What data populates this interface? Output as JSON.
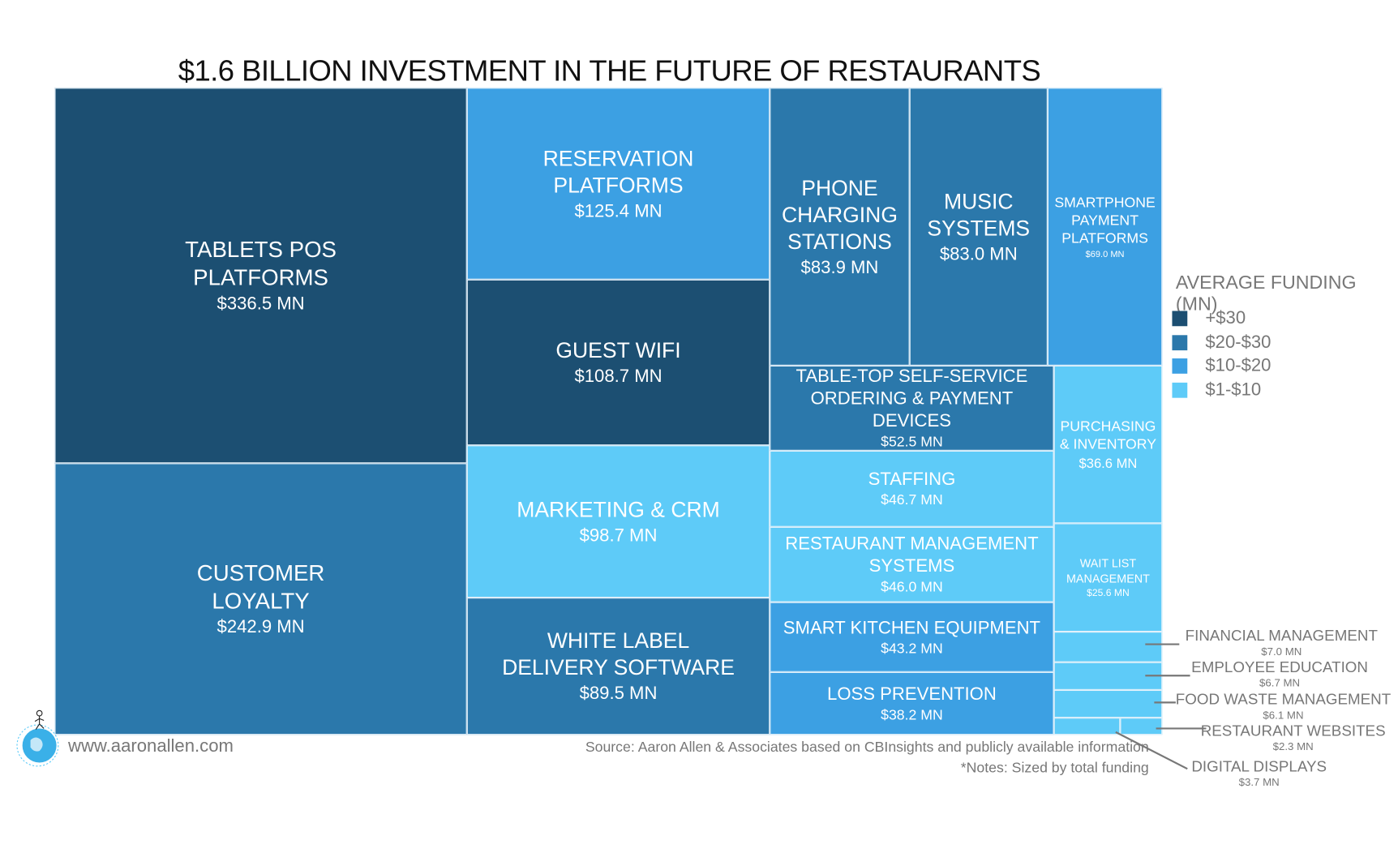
{
  "chart_data": {
    "type": "treemap",
    "title": "$1.6 BILLION INVESTMENT IN THE FUTURE OF RESTAURANTS",
    "legend": {
      "title": "AVERAGE FUNDING (MN)",
      "placement": "right",
      "items": [
        {
          "label": "+$30",
          "color": "#1c4f72"
        },
        {
          "label": "$20-$30",
          "color": "#2b78ab"
        },
        {
          "label": "$10-$20",
          "color": "#3ca0e3"
        },
        {
          "label": "$1-$10",
          "color": "#5ecbf8"
        }
      ]
    },
    "items": [
      {
        "name": "TABLETS POS\nPLATFORMS",
        "value": 336.5,
        "value_label": "$336.5 MN",
        "tier": 0
      },
      {
        "name": "CUSTOMER\nLOYALTY",
        "value": 242.9,
        "value_label": "$242.9 MN",
        "tier": 1
      },
      {
        "name": "RESERVATION\nPLATFORMS",
        "value": 125.4,
        "value_label": "$125.4 MN",
        "tier": 2
      },
      {
        "name": "GUEST WIFI",
        "value": 108.7,
        "value_label": "$108.7 MN",
        "tier": 0
      },
      {
        "name": "MARKETING & CRM",
        "value": 98.7,
        "value_label": "$98.7 MN",
        "tier": 3
      },
      {
        "name": "WHITE LABEL\nDELIVERY SOFTWARE",
        "value": 89.5,
        "value_label": "$89.5 MN",
        "tier": 1
      },
      {
        "name": "PHONE\nCHARGING\nSTATIONS",
        "value": 83.9,
        "value_label": "$83.9 MN",
        "tier": 1
      },
      {
        "name": "MUSIC\nSYSTEMS",
        "value": 83.0,
        "value_label": "$83.0 MN",
        "tier": 1
      },
      {
        "name": "SMARTPHONE\nPAYMENT\nPLATFORMS",
        "value": 69.0,
        "value_label": "$69.0 MN",
        "tier": 2
      },
      {
        "name": "TABLE-TOP SELF-SERVICE\nORDERING & PAYMENT DEVICES",
        "value": 52.5,
        "value_label": "$52.5 MN",
        "tier": 1
      },
      {
        "name": "STAFFING",
        "value": 46.7,
        "value_label": "$46.7 MN",
        "tier": 3
      },
      {
        "name": "RESTAURANT MANAGEMENT\nSYSTEMS",
        "value": 46.0,
        "value_label": "$46.0 MN",
        "tier": 3
      },
      {
        "name": "SMART KITCHEN EQUIPMENT",
        "value": 43.2,
        "value_label": "$43.2 MN",
        "tier": 2
      },
      {
        "name": "LOSS PREVENTION",
        "value": 38.2,
        "value_label": "$38.2 MN",
        "tier": 2
      },
      {
        "name": "PURCHASING\n& INVENTORY",
        "value": 36.6,
        "value_label": "$36.6 MN",
        "tier": 3
      },
      {
        "name": "WAIT LIST\nMANAGEMENT",
        "value": 25.6,
        "value_label": "$25.6 MN",
        "tier": 3
      },
      {
        "name": "FINANCIAL MANAGEMENT",
        "value": 7.0,
        "value_label": "$7.0 MN",
        "tier": 3
      },
      {
        "name": "EMPLOYEE EDUCATION",
        "value": 6.7,
        "value_label": "$6.7 MN",
        "tier": 3
      },
      {
        "name": "FOOD WASTE MANAGEMENT",
        "value": 6.1,
        "value_label": "$6.1 MN",
        "tier": 3
      },
      {
        "name": "RESTAURANT WEBSITES",
        "value": 2.3,
        "value_label": "$2.3 MN",
        "tier": 3
      },
      {
        "name": "DIGITAL DISPLAYS",
        "value": 3.7,
        "value_label": "$3.7 MN",
        "tier": 3
      }
    ]
  },
  "footer": {
    "source": "Source: Aaron Allen & Associates based on CBInsights and publicly available information",
    "note": "*Notes: Sized by total funding",
    "url": "www.aaronallen.com"
  }
}
